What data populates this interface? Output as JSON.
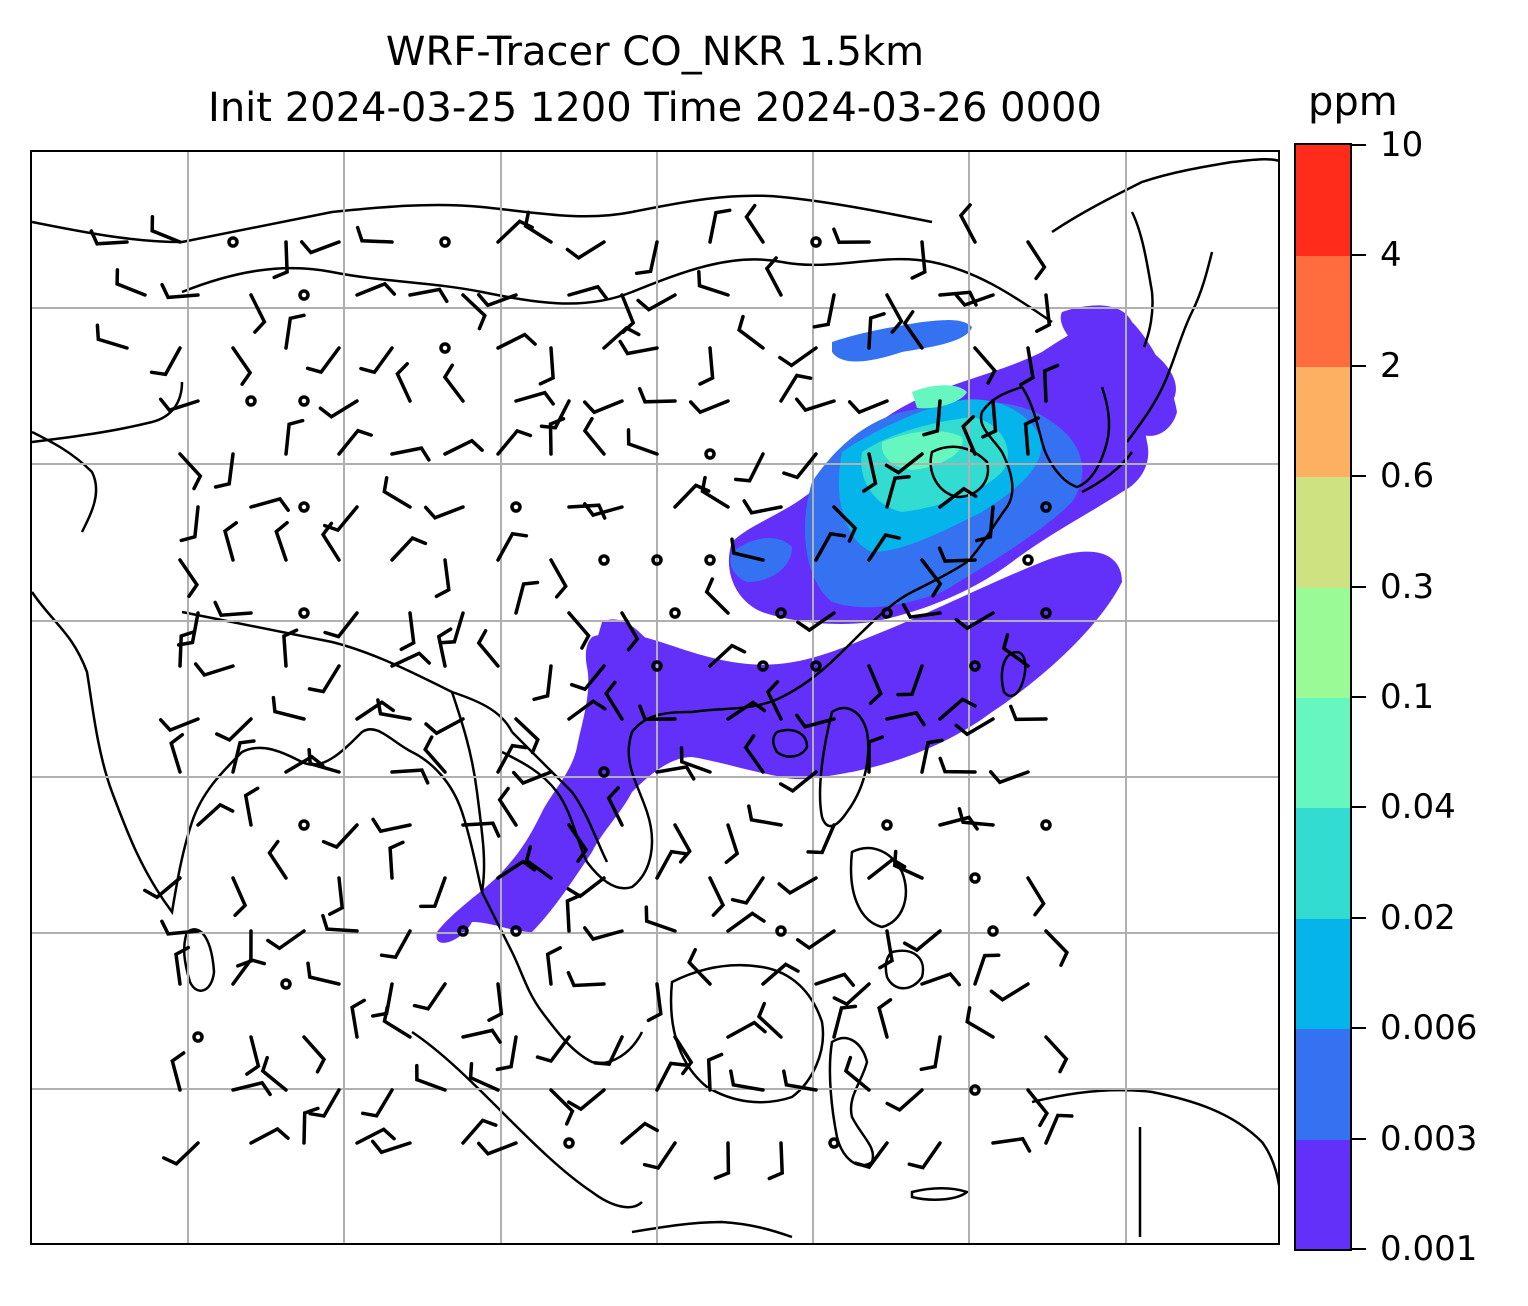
{
  "title": {
    "line1": "WRF-Tracer CO_NKR 1.5km",
    "line2": "Init 2024-03-25 1200 Time 2024-03-26 0000"
  },
  "colorbar": {
    "unit": "ppm",
    "ticks": [
      "0.001",
      "0.003",
      "0.006",
      "0.02",
      "0.04",
      "0.1",
      "0.3",
      "0.6",
      "2",
      "4",
      "10"
    ],
    "colors": [
      "#6330f9",
      "#3572f1",
      "#06b4ec",
      "#33dcd1",
      "#66f7c0",
      "#9afa95",
      "#cee282",
      "#feb062",
      "#ff6c3e",
      "#ff2c1b"
    ]
  },
  "map": {
    "gridlines": "on",
    "plume_colors": {
      "0.001-0.003": "#6330f9",
      "0.003-0.006": "#3572f1",
      "0.006-0.02": "#06b4ec",
      "0.02-0.04": "#33dcd1",
      "0.04-0.1": "#66f7c0"
    }
  }
}
